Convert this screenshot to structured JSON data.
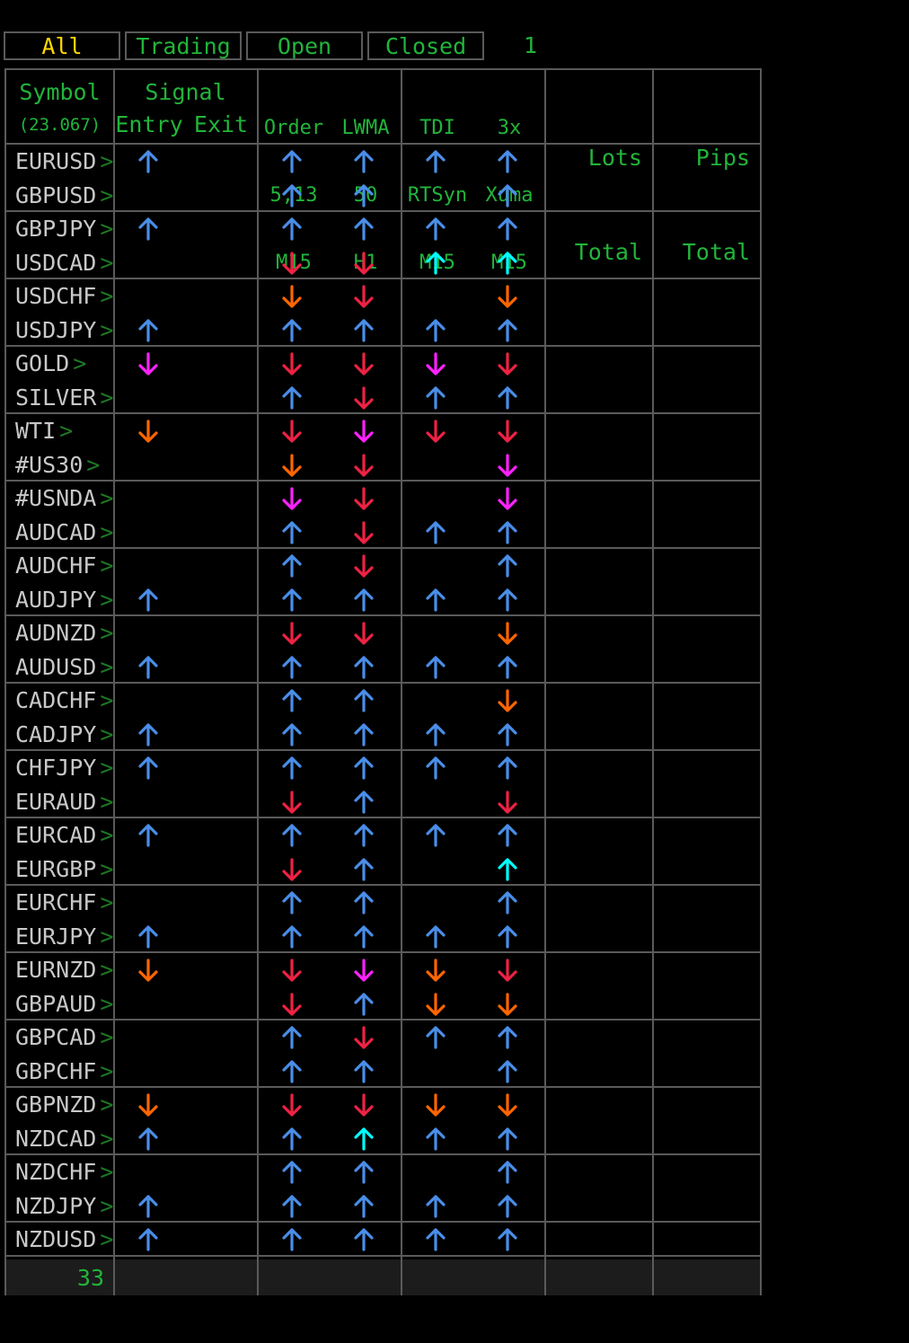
{
  "tabs": [
    {
      "label": "All",
      "active": true
    },
    {
      "label": "Trading",
      "active": false
    },
    {
      "label": "Open",
      "active": false
    },
    {
      "label": "Closed",
      "active": false
    }
  ],
  "tab_count": "1",
  "headers": {
    "symbol": "Symbol",
    "symbol_value": "(23.067)",
    "signal": "Signal",
    "entry": "Entry",
    "exit": "Exit",
    "order": [
      "Order",
      "5,13",
      "M15"
    ],
    "lwma": [
      "LWMA",
      "50",
      "H1"
    ],
    "tdi": [
      "TDI",
      "RTSyn",
      "M15"
    ],
    "xuma": [
      "3x",
      "Xuma",
      "M15"
    ],
    "lots": [
      "Lots",
      "Total"
    ],
    "pips": [
      "Pips",
      "Total"
    ]
  },
  "colors": {
    "blue": "#4a8ee8",
    "cyan": "#00ffff",
    "red": "#ee2244",
    "orange": "#ff6600",
    "magenta": "#ff22ff",
    "green": "#22b43a",
    "grid": "#5a5a5a"
  },
  "rows": [
    {
      "symbol": "EURUSD",
      "chevron": ">",
      "entry": "up-blue",
      "order": "up-blue",
      "lwma": "up-blue",
      "tdi": "up-blue",
      "xuma": "up-blue"
    },
    {
      "symbol": "GBPUSD",
      "chevron": ">",
      "entry": "",
      "order": "up-blue",
      "lwma": "up-blue",
      "tdi": "",
      "xuma": "up-blue"
    },
    {
      "symbol": "GBPJPY",
      "chevron": ">",
      "entry": "up-blue",
      "order": "up-blue",
      "lwma": "up-blue",
      "tdi": "up-blue",
      "xuma": "up-blue"
    },
    {
      "symbol": "USDCAD",
      "chevron": ">",
      "entry": "",
      "order": "down-red",
      "lwma": "down-red",
      "tdi": "up-cyan",
      "xuma": "up-cyan"
    },
    {
      "symbol": "USDCHF",
      "chevron": ">",
      "entry": "",
      "order": "down-orange",
      "lwma": "down-red",
      "tdi": "",
      "xuma": "down-orange"
    },
    {
      "symbol": "USDJPY",
      "chevron": ">",
      "entry": "up-blue",
      "order": "up-blue",
      "lwma": "up-blue",
      "tdi": "up-blue",
      "xuma": "up-blue"
    },
    {
      "symbol": "GOLD",
      "chevron": ">",
      "entry": "down-magenta",
      "order": "down-red",
      "lwma": "down-red",
      "tdi": "down-magenta",
      "xuma": "down-red"
    },
    {
      "symbol": "SILVER",
      "chevron": ">",
      "entry": "",
      "order": "up-blue",
      "lwma": "down-red",
      "tdi": "up-blue",
      "xuma": "up-blue"
    },
    {
      "symbol": "WTI",
      "chevron": ">",
      "entry": "down-orange",
      "order": "down-red",
      "lwma": "down-magenta",
      "tdi": "down-red",
      "xuma": "down-red"
    },
    {
      "symbol": "#US30",
      "chevron": ">",
      "entry": "",
      "order": "down-orange",
      "lwma": "down-red",
      "tdi": "",
      "xuma": "down-magenta"
    },
    {
      "symbol": "#USNDA",
      "chevron": ">",
      "entry": "",
      "order": "down-magenta",
      "lwma": "down-red",
      "tdi": "",
      "xuma": "down-magenta"
    },
    {
      "symbol": "AUDCAD",
      "chevron": ">",
      "entry": "",
      "order": "up-blue",
      "lwma": "down-red",
      "tdi": "up-blue",
      "xuma": "up-blue"
    },
    {
      "symbol": "AUDCHF",
      "chevron": ">",
      "entry": "",
      "order": "up-blue",
      "lwma": "down-red",
      "tdi": "",
      "xuma": "up-blue"
    },
    {
      "symbol": "AUDJPY",
      "chevron": ">",
      "entry": "up-blue",
      "order": "up-blue",
      "lwma": "up-blue",
      "tdi": "up-blue",
      "xuma": "up-blue"
    },
    {
      "symbol": "AUDNZD",
      "chevron": ">",
      "entry": "",
      "order": "down-red",
      "lwma": "down-red",
      "tdi": "",
      "xuma": "down-orange"
    },
    {
      "symbol": "AUDUSD",
      "chevron": ">",
      "entry": "up-blue",
      "order": "up-blue",
      "lwma": "up-blue",
      "tdi": "up-blue",
      "xuma": "up-blue"
    },
    {
      "symbol": "CADCHF",
      "chevron": ">",
      "entry": "",
      "order": "up-blue",
      "lwma": "up-blue",
      "tdi": "",
      "xuma": "down-orange"
    },
    {
      "symbol": "CADJPY",
      "chevron": ">",
      "entry": "up-blue",
      "order": "up-blue",
      "lwma": "up-blue",
      "tdi": "up-blue",
      "xuma": "up-blue"
    },
    {
      "symbol": "CHFJPY",
      "chevron": ">",
      "entry": "up-blue",
      "order": "up-blue",
      "lwma": "up-blue",
      "tdi": "up-blue",
      "xuma": "up-blue"
    },
    {
      "symbol": "EURAUD",
      "chevron": ">",
      "entry": "",
      "order": "down-red",
      "lwma": "up-blue",
      "tdi": "",
      "xuma": "down-red"
    },
    {
      "symbol": "EURCAD",
      "chevron": ">",
      "entry": "up-blue",
      "order": "up-blue",
      "lwma": "up-blue",
      "tdi": "up-blue",
      "xuma": "up-blue"
    },
    {
      "symbol": "EURGBP",
      "chevron": ">",
      "entry": "",
      "order": "down-red",
      "lwma": "up-blue",
      "tdi": "",
      "xuma": "up-cyan"
    },
    {
      "symbol": "EURCHF",
      "chevron": ">",
      "entry": "",
      "order": "up-blue",
      "lwma": "up-blue",
      "tdi": "",
      "xuma": "up-blue"
    },
    {
      "symbol": "EURJPY",
      "chevron": ">",
      "entry": "up-blue",
      "order": "up-blue",
      "lwma": "up-blue",
      "tdi": "up-blue",
      "xuma": "up-blue"
    },
    {
      "symbol": "EURNZD",
      "chevron": ">",
      "entry": "down-orange",
      "order": "down-red",
      "lwma": "down-magenta",
      "tdi": "down-orange",
      "xuma": "down-red"
    },
    {
      "symbol": "GBPAUD",
      "chevron": ">",
      "entry": "",
      "order": "down-red",
      "lwma": "up-blue",
      "tdi": "down-orange",
      "xuma": "down-orange"
    },
    {
      "symbol": "GBPCAD",
      "chevron": ">",
      "entry": "",
      "order": "up-blue",
      "lwma": "down-red",
      "tdi": "up-blue",
      "xuma": "up-blue"
    },
    {
      "symbol": "GBPCHF",
      "chevron": ">",
      "entry": "",
      "order": "up-blue",
      "lwma": "up-blue",
      "tdi": "",
      "xuma": "up-blue"
    },
    {
      "symbol": "GBPNZD",
      "chevron": ">",
      "entry": "down-orange",
      "order": "down-red",
      "lwma": "down-red",
      "tdi": "down-orange",
      "xuma": "down-orange"
    },
    {
      "symbol": "NZDCAD",
      "chevron": ">",
      "entry": "up-blue",
      "order": "up-blue",
      "lwma": "up-cyan",
      "tdi": "up-blue",
      "xuma": "up-blue"
    },
    {
      "symbol": "NZDCHF",
      "chevron": ">",
      "entry": "",
      "order": "up-blue",
      "lwma": "up-blue",
      "tdi": "",
      "xuma": "up-blue"
    },
    {
      "symbol": "NZDJPY",
      "chevron": ">",
      "entry": "up-blue",
      "order": "up-blue",
      "lwma": "up-blue",
      "tdi": "up-blue",
      "xuma": "up-blue"
    },
    {
      "symbol": "NZDUSD",
      "chevron": ">",
      "entry": "up-blue",
      "order": "up-blue",
      "lwma": "up-blue",
      "tdi": "up-blue",
      "xuma": "up-blue"
    }
  ],
  "footer_count": "33"
}
